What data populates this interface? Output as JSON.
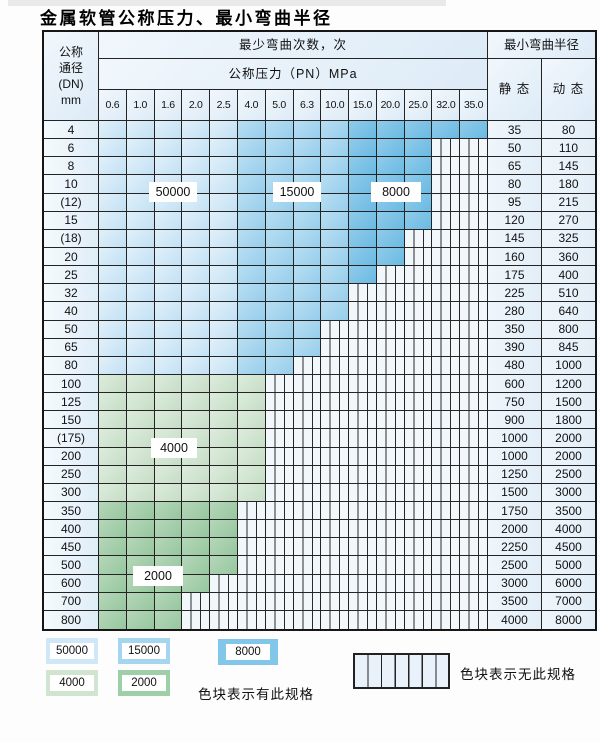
{
  "title": "金属软管公称压力、最小弯曲半径",
  "table": {
    "header": {
      "dn_lines": [
        "公称",
        "通径",
        "(DN)",
        "mm"
      ],
      "bend_cycles": "最少弯曲次数，次",
      "pressure": "公称压力（PN）MPa",
      "radius": "最小弯曲半径",
      "static_label": "静 态",
      "dynamic_label": "动 态",
      "pressures": [
        "0.6",
        "1.0",
        "1.6",
        "2.0",
        "2.5",
        "4.0",
        "5.0",
        "6.3",
        "10.0",
        "15.0",
        "20.0",
        "25.0",
        "32.0",
        "35.0"
      ]
    },
    "rows": [
      {
        "dn": "4",
        "band": "blue",
        "last": 14,
        "static": "35",
        "dynamic": "80"
      },
      {
        "dn": "6",
        "band": "blue",
        "last": 12,
        "static": "50",
        "dynamic": "110"
      },
      {
        "dn": "8",
        "band": "blue",
        "last": 12,
        "static": "65",
        "dynamic": "145"
      },
      {
        "dn": "10",
        "band": "blue",
        "last": 12,
        "static": "80",
        "dynamic": "180"
      },
      {
        "dn": "(12)",
        "band": "blue",
        "last": 12,
        "static": "95",
        "dynamic": "215"
      },
      {
        "dn": "15",
        "band": "blue",
        "last": 12,
        "static": "120",
        "dynamic": "270"
      },
      {
        "dn": "(18)",
        "band": "blue",
        "last": 11,
        "static": "145",
        "dynamic": "325"
      },
      {
        "dn": "20",
        "band": "blue",
        "last": 11,
        "static": "160",
        "dynamic": "360"
      },
      {
        "dn": "25",
        "band": "blue",
        "last": 10,
        "static": "175",
        "dynamic": "400"
      },
      {
        "dn": "32",
        "band": "blue",
        "last": 9,
        "static": "225",
        "dynamic": "510"
      },
      {
        "dn": "40",
        "band": "blue",
        "last": 9,
        "static": "280",
        "dynamic": "640"
      },
      {
        "dn": "50",
        "band": "blue",
        "last": 8,
        "static": "350",
        "dynamic": "800"
      },
      {
        "dn": "65",
        "band": "blue",
        "last": 8,
        "static": "390",
        "dynamic": "845"
      },
      {
        "dn": "80",
        "band": "blue",
        "last": 7,
        "static": "480",
        "dynamic": "1000"
      },
      {
        "dn": "100",
        "band": "g4",
        "last": 6,
        "static": "600",
        "dynamic": "1200"
      },
      {
        "dn": "125",
        "band": "g4",
        "last": 6,
        "static": "750",
        "dynamic": "1500"
      },
      {
        "dn": "150",
        "band": "g4",
        "last": 6,
        "static": "900",
        "dynamic": "1800"
      },
      {
        "dn": "(175)",
        "band": "g4",
        "last": 6,
        "static": "1000",
        "dynamic": "2000"
      },
      {
        "dn": "200",
        "band": "g4",
        "last": 6,
        "static": "1000",
        "dynamic": "2000"
      },
      {
        "dn": "250",
        "band": "g4",
        "last": 6,
        "static": "1250",
        "dynamic": "2500"
      },
      {
        "dn": "300",
        "band": "g4",
        "last": 6,
        "static": "1500",
        "dynamic": "3000"
      },
      {
        "dn": "350",
        "band": "g2",
        "last": 5,
        "static": "1750",
        "dynamic": "3500"
      },
      {
        "dn": "400",
        "band": "g2",
        "last": 5,
        "static": "2000",
        "dynamic": "4000"
      },
      {
        "dn": "450",
        "band": "g2",
        "last": 5,
        "static": "2250",
        "dynamic": "4500"
      },
      {
        "dn": "500",
        "band": "g2",
        "last": 5,
        "static": "2500",
        "dynamic": "5000"
      },
      {
        "dn": "600",
        "band": "g2",
        "last": 4,
        "static": "3000",
        "dynamic": "6000"
      },
      {
        "dn": "700",
        "band": "g2",
        "last": 3,
        "static": "3500",
        "dynamic": "7000"
      },
      {
        "dn": "800",
        "band": "g2",
        "last": 3,
        "static": "4000",
        "dynamic": "8000"
      }
    ]
  },
  "overlay_labels": {
    "b50000": "50000",
    "b15000": "15000",
    "b8000": "8000",
    "g4000": "4000",
    "g2000": "2000"
  },
  "legend": {
    "items": [
      {
        "value": "50000",
        "color": "#cfe7f7"
      },
      {
        "value": "15000",
        "color": "#a6d5f0"
      },
      {
        "value": "8000",
        "color": "#82c6e9"
      },
      {
        "value": "4000",
        "color": "#d0e5d0"
      },
      {
        "value": "2000",
        "color": "#9ecfa9"
      }
    ],
    "has_spec_text": "色块表示有此规格",
    "no_spec_text": "色块表示无此规格"
  },
  "colors": {
    "blue_50000": "#cde6f6",
    "blue_15000": "#9fd2ef",
    "blue_8000": "#76c0e6",
    "green_4000": "#d0e5d1",
    "green_2000": "#a2cfa8",
    "header_bg": "#e7f1fa",
    "grid_line": "#242424"
  }
}
